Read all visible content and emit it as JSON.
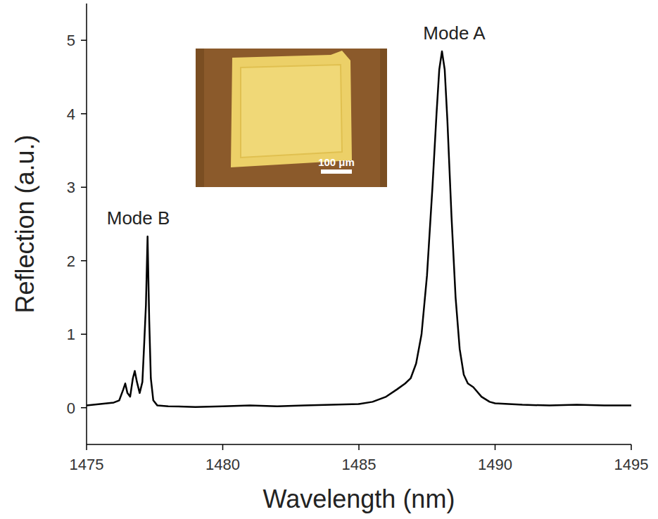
{
  "chart_data": {
    "type": "line",
    "x_label": "Wavelength (nm)",
    "y_label": "Reflection (a.u.)",
    "color": "#000000",
    "x": [
      1475,
      1475.5,
      1476,
      1476.2,
      1476.35,
      1476.42,
      1476.5,
      1476.6,
      1476.7,
      1476.77,
      1476.85,
      1476.95,
      1477.05,
      1477.12,
      1477.18,
      1477.24,
      1477.3,
      1477.36,
      1477.45,
      1477.6,
      1478,
      1479,
      1480,
      1481,
      1482,
      1483,
      1484,
      1485,
      1485.5,
      1486,
      1486.4,
      1486.7,
      1486.9,
      1487.1,
      1487.3,
      1487.5,
      1487.7,
      1487.85,
      1487.95,
      1488.05,
      1488.15,
      1488.25,
      1488.4,
      1488.55,
      1488.7,
      1488.85,
      1489.0,
      1489.2,
      1489.5,
      1489.8,
      1490,
      1491,
      1492,
      1493,
      1494,
      1495
    ],
    "values": [
      0.03,
      0.05,
      0.07,
      0.1,
      0.25,
      0.33,
      0.2,
      0.15,
      0.4,
      0.5,
      0.35,
      0.2,
      0.35,
      0.9,
      1.4,
      2.33,
      1.2,
      0.4,
      0.1,
      0.03,
      0.02,
      0.01,
      0.02,
      0.03,
      0.02,
      0.03,
      0.04,
      0.05,
      0.08,
      0.15,
      0.25,
      0.33,
      0.4,
      0.6,
      1.0,
      1.8,
      3.0,
      4.0,
      4.6,
      4.85,
      4.6,
      3.9,
      2.6,
      1.5,
      0.8,
      0.45,
      0.33,
      0.28,
      0.15,
      0.08,
      0.06,
      0.04,
      0.03,
      0.04,
      0.03,
      0.03
    ],
    "xlim": [
      1475,
      1495
    ],
    "xticks": [
      1475,
      1480,
      1485,
      1490,
      1495
    ],
    "ylim": [
      -0.5,
      5.5
    ],
    "yticks": [
      0,
      1,
      2,
      3,
      4,
      5
    ],
    "grid": false,
    "annotations": [
      {
        "text": "Mode A",
        "x": 1488.5,
        "y": 5.1
      },
      {
        "text": "Mode B",
        "x": 1476.9,
        "y": 2.58
      }
    ],
    "inset": {
      "scale_bar_label": "100 μm"
    }
  }
}
